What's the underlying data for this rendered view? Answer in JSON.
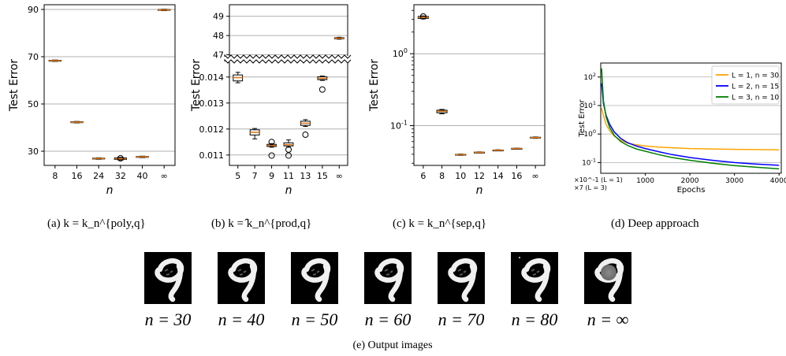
{
  "chart_data": [
    {
      "id": "a",
      "type": "box",
      "caption": "(a)  k = k_n^{poly,q}",
      "ylabel": "Test Error",
      "xlabel": "n",
      "categories": [
        "8",
        "16",
        "24",
        "32",
        "40",
        "∞"
      ],
      "yticks": [
        "30",
        "50",
        "70",
        "90"
      ],
      "ylim": [
        24,
        92
      ],
      "boxes": [
        {
          "med": 68.3,
          "q1": 68.1,
          "q3": 68.5,
          "lo": 68.0,
          "hi": 68.6
        },
        {
          "med": 42.3,
          "q1": 42.1,
          "q3": 42.5,
          "lo": 42.0,
          "hi": 42.6
        },
        {
          "med": 26.9,
          "q1": 26.7,
          "q3": 27.1,
          "lo": 26.6,
          "hi": 27.2
        },
        {
          "med": 26.8,
          "q1": 26.5,
          "q3": 27.2,
          "lo": 26.3,
          "hi": 27.4,
          "outliers": [
            27.0
          ]
        },
        {
          "med": 27.6,
          "q1": 27.4,
          "q3": 27.8,
          "lo": 27.3,
          "hi": 27.9
        },
        {
          "med": 89.8,
          "q1": 89.6,
          "q3": 90.0,
          "lo": 89.5,
          "hi": 90.1
        }
      ]
    },
    {
      "id": "b",
      "type": "box",
      "caption": "(b)  k = ̂k_n^{prod,q}",
      "ylabel": "Test Error",
      "xlabel": "n",
      "categories": [
        "5",
        "7",
        "9",
        "11",
        "13",
        "15",
        "∞"
      ],
      "yticks_top": [
        "47",
        "48",
        "49"
      ],
      "yticks_bottom": [
        "0.011",
        "0.012",
        "0.013",
        "0.014"
      ],
      "ylim_top": [
        46.9,
        49.6
      ],
      "ylim_bottom": [
        0.0106,
        0.0146
      ],
      "boxes": [
        {
          "part": "bottom",
          "med": 0.01398,
          "q1": 0.01385,
          "q3": 0.01408,
          "lo": 0.01378,
          "hi": 0.01418
        },
        {
          "part": "bottom",
          "med": 0.01187,
          "q1": 0.01177,
          "q3": 0.01197,
          "lo": 0.01162,
          "hi": 0.01202
        },
        {
          "part": "bottom",
          "med": 0.01137,
          "q1": 0.01133,
          "q3": 0.01141,
          "lo": 0.0113,
          "hi": 0.01144,
          "outliers": [
            0.0115,
            0.01098
          ]
        },
        {
          "part": "bottom",
          "med": 0.0114,
          "q1": 0.01135,
          "q3": 0.01147,
          "lo": 0.0113,
          "hi": 0.01158,
          "outliers": [
            0.01121,
            0.01098
          ]
        },
        {
          "part": "bottom",
          "med": 0.01222,
          "q1": 0.01214,
          "q3": 0.0123,
          "lo": 0.0121,
          "hi": 0.01236,
          "outliers": [
            0.01178
          ]
        },
        {
          "part": "bottom",
          "med": 0.01395,
          "q1": 0.0139,
          "q3": 0.01401,
          "lo": 0.01387,
          "hi": 0.01404,
          "outliers": [
            0.01352
          ]
        },
        {
          "part": "top",
          "med": 47.86,
          "q1": 47.83,
          "q3": 47.89,
          "lo": 47.81,
          "hi": 47.91
        }
      ]
    },
    {
      "id": "c",
      "type": "box",
      "caption": "(c)  k = k_n^{sep,q}",
      "ylabel": "Test Error",
      "xlabel": "n",
      "scale": "log",
      "categories": [
        "6",
        "8",
        "10",
        "12",
        "14",
        "16",
        "∞"
      ],
      "ymajor_labels": [
        "10^0",
        "10^-1"
      ],
      "ylim": [
        0.028,
        4.8
      ],
      "boxes": [
        {
          "med": 3.2,
          "q1": 3.1,
          "q3": 3.3,
          "lo": 3.05,
          "hi": 3.35,
          "outliers": [
            3.3
          ]
        },
        {
          "med": 0.158,
          "q1": 0.151,
          "q3": 0.164,
          "lo": 0.146,
          "hi": 0.168
        },
        {
          "med": 0.0395,
          "q1": 0.039,
          "q3": 0.04,
          "lo": 0.0387,
          "hi": 0.0403
        },
        {
          "med": 0.0425,
          "q1": 0.0421,
          "q3": 0.0429,
          "lo": 0.0418,
          "hi": 0.0432
        },
        {
          "med": 0.0455,
          "q1": 0.0451,
          "q3": 0.0459,
          "lo": 0.0448,
          "hi": 0.0462
        },
        {
          "med": 0.048,
          "q1": 0.0476,
          "q3": 0.0484,
          "lo": 0.0473,
          "hi": 0.0487
        },
        {
          "med": 0.068,
          "q1": 0.067,
          "q3": 0.069,
          "lo": 0.0665,
          "hi": 0.0695
        }
      ]
    },
    {
      "id": "d",
      "type": "line",
      "caption": "(d)  Deep approach",
      "ylabel": "Test Error",
      "xlabel": "Epochs",
      "scale": "log",
      "xticks": [
        "1000",
        "2000",
        "3000",
        "4000"
      ],
      "xlim": [
        0,
        4050
      ],
      "ylim": [
        0.042,
        310
      ],
      "ymajor_labels": [
        "10^2",
        "10^1",
        "10^0",
        "10^-1"
      ],
      "scale_note": [
        "×10^-1 (L = 1)",
        "×7 (L = 3)"
      ],
      "legend_placement": "top-right",
      "series": [
        {
          "name": "L = 1, n = 30",
          "color": "#ffa500",
          "x": [
            20,
            60,
            120,
            200,
            300,
            450,
            600,
            800,
            1000,
            1300,
            1600,
            2000,
            2500,
            3000,
            3500,
            4000
          ],
          "y": [
            8,
            4.5,
            2.2,
            1.3,
            0.85,
            0.6,
            0.48,
            0.42,
            0.38,
            0.35,
            0.33,
            0.31,
            0.3,
            0.29,
            0.285,
            0.28
          ]
        },
        {
          "name": "L = 2, n = 15",
          "color": "#0000ff",
          "x": [
            20,
            60,
            120,
            200,
            300,
            450,
            600,
            800,
            1000,
            1300,
            1600,
            2000,
            2500,
            3000,
            3500,
            4000
          ],
          "y": [
            60,
            12,
            4.5,
            2.2,
            1.2,
            0.7,
            0.5,
            0.38,
            0.31,
            0.24,
            0.19,
            0.15,
            0.12,
            0.1,
            0.088,
            0.08
          ]
        },
        {
          "name": "L = 3, n = 10",
          "color": "#008000",
          "x": [
            20,
            60,
            120,
            200,
            300,
            450,
            600,
            800,
            1000,
            1300,
            1600,
            2000,
            2500,
            3000,
            3500,
            4000
          ],
          "y": [
            200,
            15,
            4.0,
            1.7,
            0.9,
            0.55,
            0.4,
            0.3,
            0.25,
            0.19,
            0.15,
            0.12,
            0.095,
            0.078,
            0.068,
            0.06
          ]
        }
      ]
    }
  ],
  "output_images": {
    "caption": "(e)  Output images",
    "labels": [
      "n = 30",
      "n = 40",
      "n = 50",
      "n = 60",
      "n = 70",
      "n = 80",
      "n = ∞"
    ]
  }
}
